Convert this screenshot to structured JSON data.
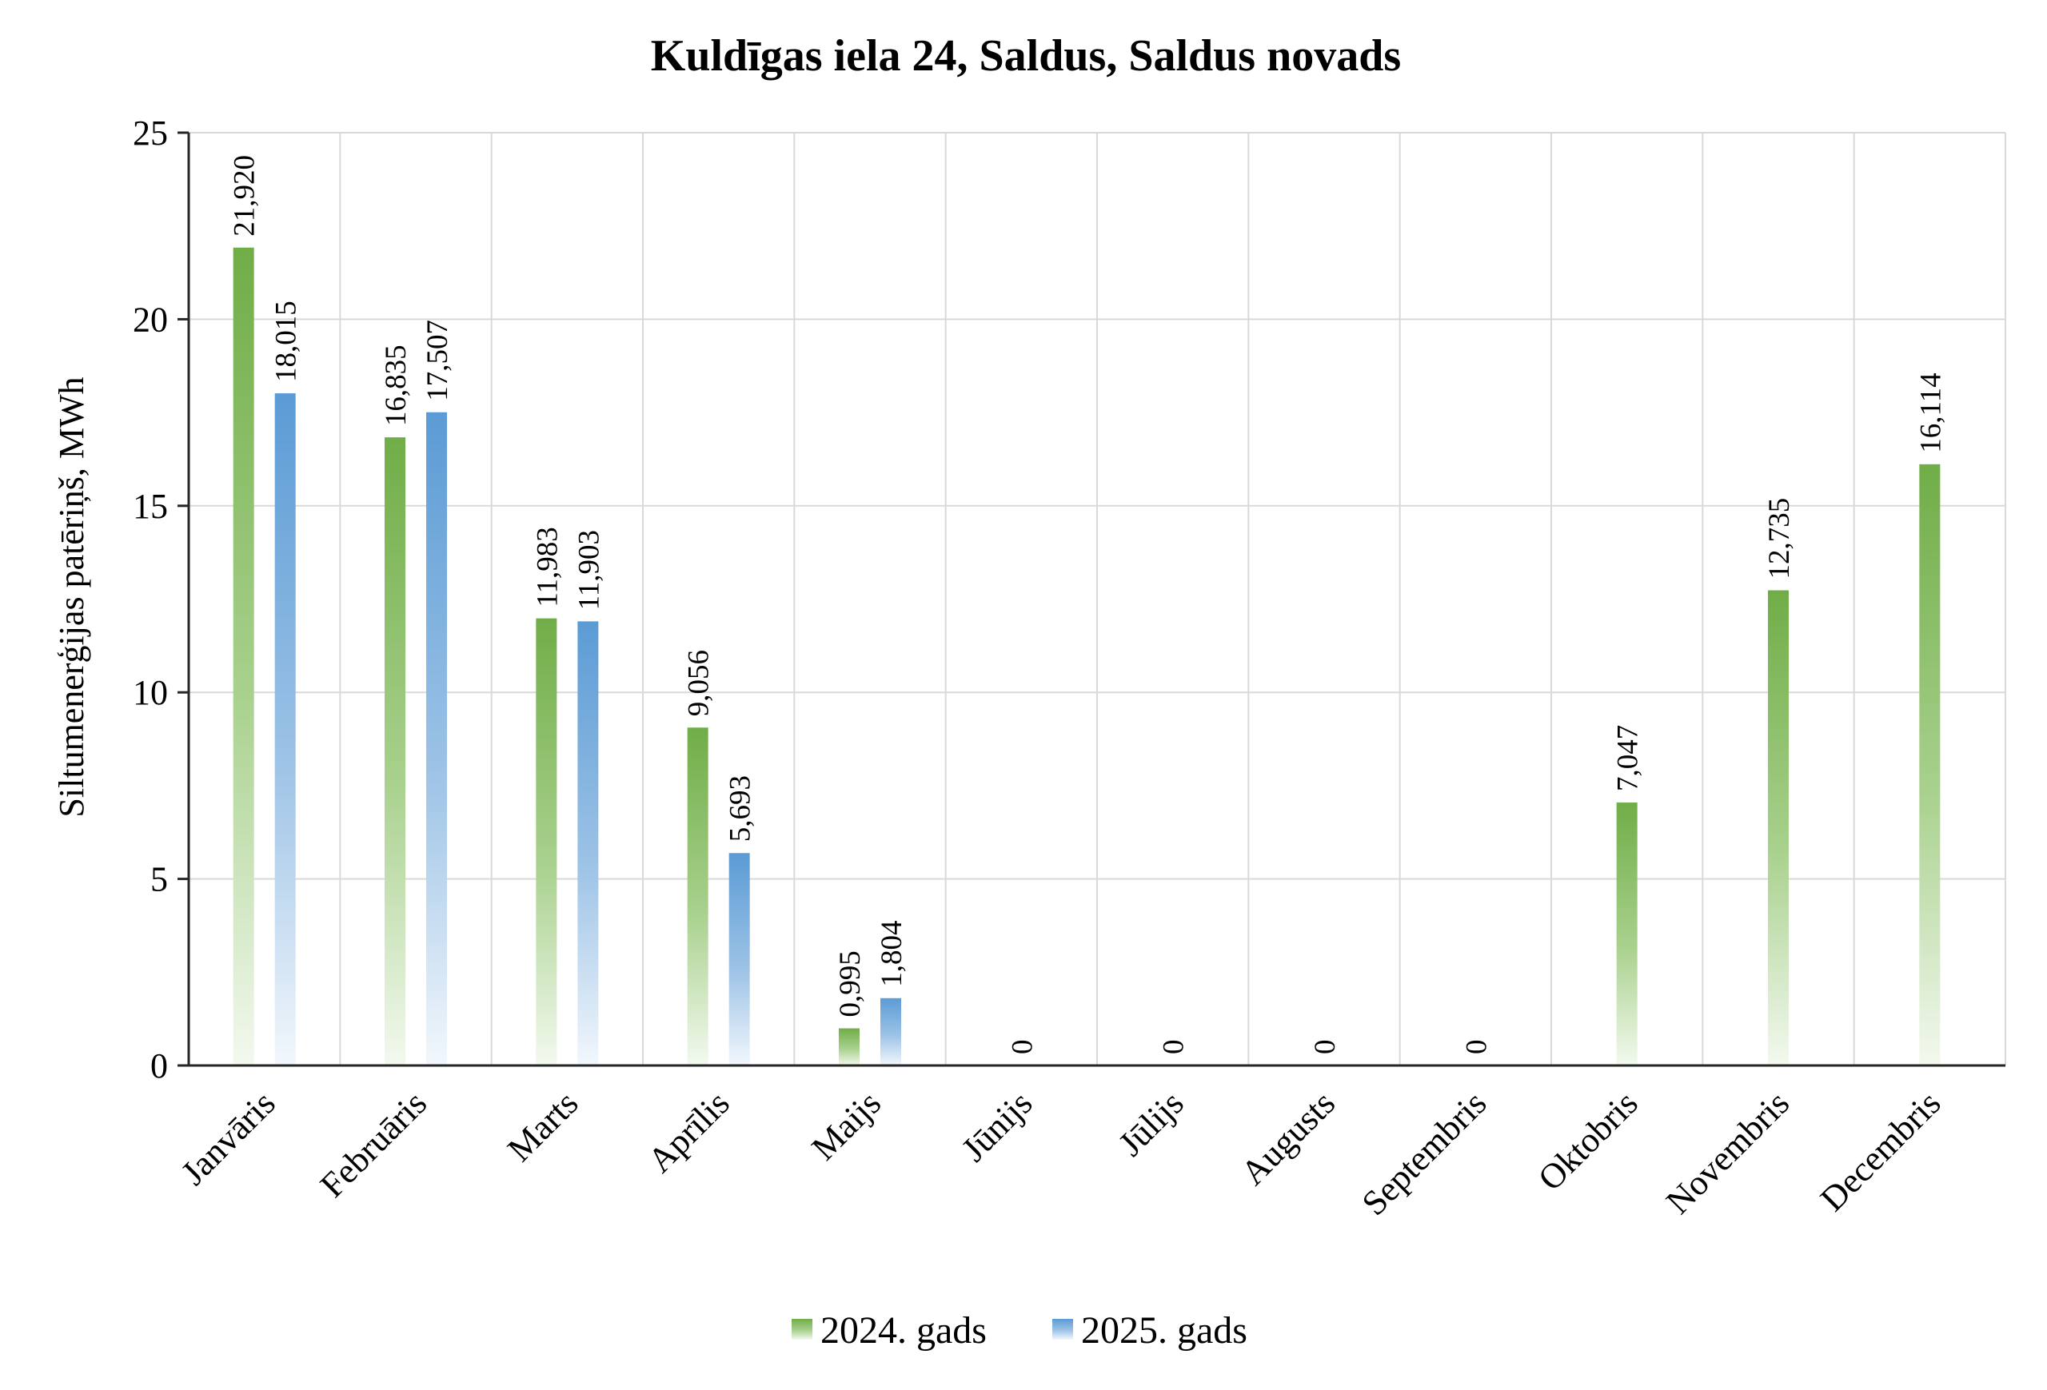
{
  "chart_data": {
    "type": "bar",
    "title": "Kuldīgas iela 24, Saldus, Saldus novads",
    "ylabel": "Siltumenerģijas patēriņš, MWh",
    "xlabel": "",
    "ylim": [
      0,
      25
    ],
    "yticks": [
      0,
      5,
      10,
      15,
      20,
      25
    ],
    "grid": true,
    "legend_position": "bottom",
    "categories": [
      "Janvāris",
      "Februāris",
      "Marts",
      "Aprīlis",
      "Maijs",
      "Jūnijs",
      "Jūlijs",
      "Augusts",
      "Septembris",
      "Oktobris",
      "Novembris",
      "Decembris"
    ],
    "series": [
      {
        "name": "2024. gads",
        "color": "#70ad47",
        "values": [
          21.92,
          16.835,
          11.983,
          9.056,
          0.995,
          0,
          0,
          0,
          0,
          7.047,
          12.735,
          16.114
        ],
        "labels": [
          "21,920",
          "16,835",
          "11,983",
          "9,056",
          "0,995",
          "0",
          "0",
          "0",
          "0",
          "7,047",
          "12,735",
          "16,114"
        ]
      },
      {
        "name": "2025. gads",
        "color": "#5b9bd5",
        "values": [
          18.015,
          17.507,
          11.903,
          5.693,
          1.804,
          null,
          null,
          null,
          null,
          null,
          null,
          null
        ],
        "labels": [
          "18,015",
          "17,507",
          "11,903",
          "5,693",
          "1,804",
          "",
          "",
          "",
          "",
          "",
          "",
          ""
        ]
      }
    ]
  }
}
